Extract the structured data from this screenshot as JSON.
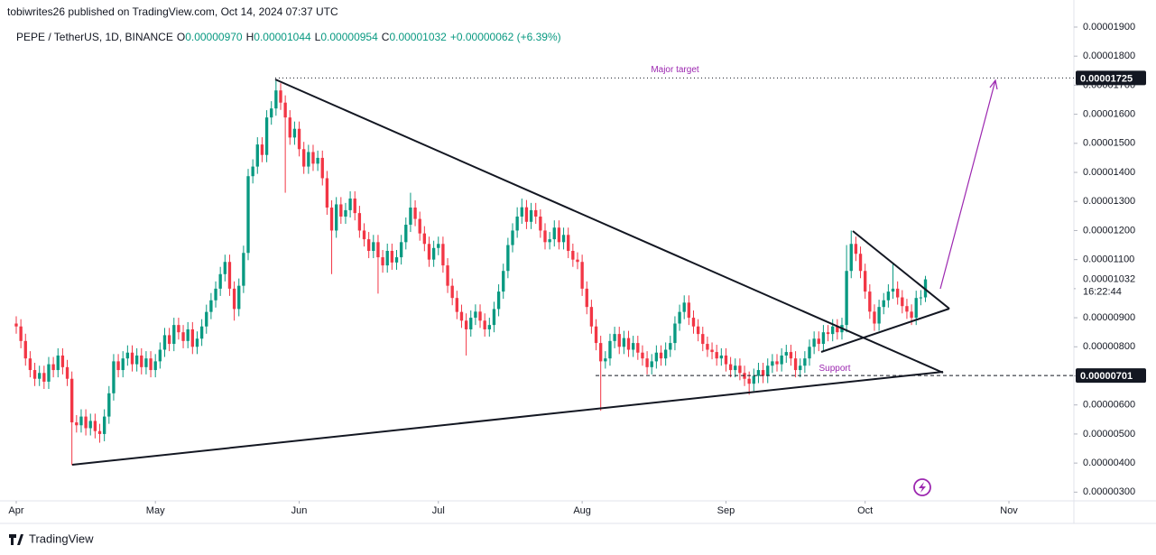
{
  "header": {
    "published": "tobiwrites26 published on TradingView.com, Oct 14, 2024 07:37 UTC",
    "symbol": "PEPE / TetherUS, 1D, BINANCE",
    "ohlc": [
      {
        "key": "O",
        "value": "0.00000970"
      },
      {
        "key": "H",
        "value": "0.00001044"
      },
      {
        "key": "L",
        "value": "0.00000954"
      },
      {
        "key": "C",
        "value": "0.00001032"
      }
    ],
    "change": "+0.00000062 (+6.39%)"
  },
  "footer": {
    "brand": "TradingView"
  },
  "chart_data": {
    "type": "candlestick",
    "up_color": "#089981",
    "down_color": "#f23645",
    "xlim": [
      -3.5,
      228
    ],
    "xticks": [
      {
        "value": 0,
        "label": "Apr"
      },
      {
        "value": 30,
        "label": "May"
      },
      {
        "value": 61,
        "label": "Jun"
      },
      {
        "value": 91,
        "label": "Jul"
      },
      {
        "value": 122,
        "label": "Aug"
      },
      {
        "value": 153,
        "label": "Sep"
      },
      {
        "value": 183,
        "label": "Oct"
      },
      {
        "value": 214,
        "label": "Nov"
      }
    ],
    "ylim": [
      2.7e-06,
      1.931e-05
    ],
    "yticks": [
      {
        "value": 3e-06,
        "label": "0.00000300"
      },
      {
        "value": 4e-06,
        "label": "0.00000400"
      },
      {
        "value": 5e-06,
        "label": "0.00000500"
      },
      {
        "value": 6e-06,
        "label": "0.00000600"
      },
      {
        "value": 7e-06,
        "label": "0.00000700"
      },
      {
        "value": 8e-06,
        "label": "0.00000800"
      },
      {
        "value": 9e-06,
        "label": "0.00000900"
      },
      {
        "value": 1e-05,
        "label": "0.00001000"
      },
      {
        "value": 1.1e-05,
        "label": "0.00001100"
      },
      {
        "value": 1.2e-05,
        "label": "0.00001200"
      },
      {
        "value": 1.3e-05,
        "label": "0.00001300"
      },
      {
        "value": 1.4e-05,
        "label": "0.00001400"
      },
      {
        "value": 1.5e-05,
        "label": "0.00001500"
      },
      {
        "value": 1.6e-05,
        "label": "0.00001600"
      },
      {
        "value": 1.7e-05,
        "label": "0.00001700"
      },
      {
        "value": 1.8e-05,
        "label": "0.00001800"
      },
      {
        "value": 1.9e-05,
        "label": "0.00001900"
      }
    ],
    "levels": [
      {
        "value": 1.725e-05,
        "label": "0.00001725",
        "text": "Major target"
      },
      {
        "value": 7.01e-06,
        "label": "0.00000701",
        "text": "Support"
      }
    ],
    "last_price": {
      "value": 1.032e-05,
      "label": "0.00001032",
      "countdown": "16:22:44"
    },
    "open": [
      8.8e-06,
      8.7e-06,
      8.2e-06,
      7.6e-06,
      7.2e-06,
      6.9e-06,
      7.1e-06,
      6.8e-06,
      7.4e-06,
      7.2e-06,
      7.7e-06,
      7.3e-06,
      6.9e-06,
      5.4e-06,
      5.3e-06,
      5.6e-06,
      5.2e-06,
      5.45e-06,
      5.1e-06,
      5e-06,
      5.6e-06,
      6.4e-06,
      7.5e-06,
      7.2e-06,
      7.6e-06,
      7.8e-06,
      7.4e-06,
      7.7e-06,
      7.3e-06,
      7.6e-06,
      7.2e-06,
      7.5e-06,
      7.9e-06,
      8.4e-06,
      8.1e-06,
      8.75e-06,
      8.5e-06,
      8.2e-06,
      8.6e-06,
      8e-06,
      8.28e-06,
      8.7e-06,
      9.2e-06,
      9.6e-06,
      1e-05,
      1.05e-05,
      1.092e-05,
      1e-05,
      9.3e-06,
      1.01e-05,
      1.123e-05,
      1.387e-05,
      1.42e-05,
      1.496e-05,
      1.46e-05,
      1.589e-05,
      1.62e-05,
      1.682e-05,
      1.64e-05,
      1.589e-05,
      1.52e-05,
      1.55e-05,
      1.48e-05,
      1.42e-05,
      1.47e-05,
      1.43e-05,
      1.45e-05,
      1.38e-05,
      1.279e-05,
      1.2e-05,
      1.29e-05,
      1.248e-05,
      1.27e-05,
      1.31e-05,
      1.26e-05,
      1.2e-05,
      1.17e-05,
      1.13e-05,
      1.16e-05,
      1.108e-05,
      1.08e-05,
      1.13e-05,
      1.09e-05,
      1.108e-05,
      1.16e-05,
      1.22e-05,
      1.279e-05,
      1.24e-05,
      1.19e-05,
      1.154e-05,
      1.1e-05,
      1.14e-05,
      1.154e-05,
      1.08e-05,
      1.01e-05,
      9.68e-06,
      9.2e-06,
      8.9e-06,
      8.6e-06,
      9e-06,
      9.21e-06,
      8.9e-06,
      8.6e-06,
      8.75e-06,
      9.3e-06,
      9.9e-06,
      1.061e-05,
      1.15e-05,
      1.2e-05,
      1.248e-05,
      1.28e-05,
      1.23e-05,
      1.27e-05,
      1.248e-05,
      1.2e-05,
      1.16e-05,
      1.17e-05,
      1.21e-05,
      1.16e-05,
      1.185e-05,
      1.13e-05,
      1.1e-05,
      1.092e-05,
      1e-05,
      9.37e-06,
      8.7e-06,
      8.13e-06,
      7.5e-06,
      7.6e-06,
      8.2e-06,
      8.44e-06,
      8e-06,
      8.3e-06,
      7.9e-06,
      8.13e-06,
      7.8e-06,
      7.6e-06,
      7.3e-06,
      7.5e-06,
      7.8e-06,
      7.6e-06,
      7.9e-06,
      8.13e-06,
      8.8e-06,
      9.2e-06,
      9.52e-06,
      9e-06,
      8.7e-06,
      8.44e-06,
      8.1e-06,
      7.9e-06,
      7.82e-06,
      7.6e-06,
      7.7e-06,
      7.4e-06,
      7.2e-06,
      7.35e-06,
      7.1e-06,
      6.9e-06,
      6.73e-06,
      7e-06,
      7.2e-06,
      7e-06,
      7.35e-06,
      7.5e-06,
      7.4e-06,
      7.7e-06,
      7.82e-06,
      7.6e-06,
      7.2e-06,
      7.35e-06,
      7.6e-06,
      8e-06,
      8.28e-06,
      8.1e-06,
      8.5e-06,
      8.44e-06,
      8.7e-06,
      8.5e-06,
      8.75e-06,
      1.061e-05,
      1.154e-05,
      1.12e-05,
      1.061e-05,
      9.9e-06,
      9.21e-06,
      8.8e-06,
      9.37e-06,
      9.6e-06,
      9.9e-06,
      1e-05,
      9.7e-06,
      9.4e-06,
      9.21e-06,
      9e-06,
      9.68e-06,
      9.7e-06
    ],
    "high": [
      9.05e-06,
      8.95e-06,
      8.45e-06,
      7.85e-06,
      7.45e-06,
      7.35e-06,
      7.35e-06,
      7.65e-06,
      7.65e-06,
      7.95e-06,
      7.95e-06,
      7.55e-06,
      7.15e-06,
      5.65e-06,
      5.85e-06,
      5.85e-06,
      5.7e-06,
      5.7e-06,
      5.35e-06,
      5.85e-06,
      6.65e-06,
      7.75e-06,
      7.75e-06,
      7.85e-06,
      8.05e-06,
      8.05e-06,
      7.95e-06,
      7.95e-06,
      7.85e-06,
      7.85e-06,
      7.75e-06,
      8.15e-06,
      8.65e-06,
      8.65e-06,
      9e-06,
      9e-06,
      8.75e-06,
      8.85e-06,
      8.85e-06,
      8.53e-06,
      8.95e-06,
      9.45e-06,
      9.85e-06,
      1.025e-05,
      1.075e-05,
      1.117e-05,
      1.117e-05,
      1.025e-05,
      1.035e-05,
      1.148e-05,
      1.412e-05,
      1.445e-05,
      1.521e-05,
      1.521e-05,
      1.614e-05,
      1.645e-05,
      1.72e-05,
      1.707e-05,
      1.665e-05,
      1.614e-05,
      1.575e-05,
      1.575e-05,
      1.505e-05,
      1.495e-05,
      1.495e-05,
      1.475e-05,
      1.475e-05,
      1.405e-05,
      1.304e-05,
      1.315e-05,
      1.315e-05,
      1.295e-05,
      1.335e-05,
      1.335e-05,
      1.285e-05,
      1.225e-05,
      1.195e-05,
      1.185e-05,
      1.185e-05,
      1.133e-05,
      1.155e-05,
      1.155e-05,
      1.133e-05,
      1.185e-05,
      1.245e-05,
      1.33e-05,
      1.304e-05,
      1.265e-05,
      1.215e-05,
      1.179e-05,
      1.165e-05,
      1.179e-05,
      1.179e-05,
      1.105e-05,
      1.035e-05,
      9.93e-06,
      9.45e-06,
      9.15e-06,
      9.25e-06,
      9.46e-06,
      9.46e-06,
      9.15e-06,
      9e-06,
      9.55e-06,
      1.015e-05,
      1.086e-05,
      1.175e-05,
      1.225e-05,
      1.28e-05,
      1.31e-05,
      1.305e-05,
      1.295e-05,
      1.295e-05,
      1.273e-05,
      1.225e-05,
      1.195e-05,
      1.235e-05,
      1.235e-05,
      1.21e-05,
      1.21e-05,
      1.155e-05,
      1.125e-05,
      1.117e-05,
      1.025e-05,
      9.62e-06,
      8.95e-06,
      8.38e-06,
      7.85e-06,
      8.45e-06,
      8.69e-06,
      8.69e-06,
      8.55e-06,
      8.55e-06,
      8.38e-06,
      8.38e-06,
      8.05e-06,
      7.85e-06,
      7.75e-06,
      8.05e-06,
      8.05e-06,
      8.15e-06,
      8.38e-06,
      9.05e-06,
      9.45e-06,
      9.77e-06,
      9.77e-06,
      9.25e-06,
      8.95e-06,
      8.69e-06,
      8.35e-06,
      8.15e-06,
      8.07e-06,
      7.95e-06,
      7.95e-06,
      7.65e-06,
      7.6e-06,
      7.6e-06,
      7.35e-06,
      7.15e-06,
      7.25e-06,
      7.45e-06,
      7.45e-06,
      7.6e-06,
      7.75e-06,
      7.75e-06,
      7.95e-06,
      8.07e-06,
      8.07e-06,
      7.85e-06,
      7.6e-06,
      7.85e-06,
      8.25e-06,
      8.53e-06,
      8.53e-06,
      8.75e-06,
      8.75e-06,
      8.95e-06,
      8.95e-06,
      9e-06,
      1.15e-05,
      1.2e-05,
      1.179e-05,
      1.145e-05,
      1.086e-05,
      1.015e-05,
      9.46e-06,
      9.62e-06,
      9.85e-06,
      1.015e-05,
      1.086e-05,
      1.025e-05,
      9.95e-06,
      9.65e-06,
      9.46e-06,
      9.93e-06,
      9.95e-06,
      1.044e-05
    ],
    "low": [
      8.45e-06,
      7.95e-06,
      7.35e-06,
      6.95e-06,
      6.65e-06,
      6.65e-06,
      6.55e-06,
      6.55e-06,
      6.95e-06,
      6.95e-06,
      7.05e-06,
      6.65e-06,
      3.93e-06,
      5.05e-06,
      5.05e-06,
      4.95e-06,
      4.95e-06,
      4.85e-06,
      4.7e-06,
      4.75e-06,
      5.35e-06,
      6.15e-06,
      6.95e-06,
      6.95e-06,
      7.35e-06,
      7.15e-06,
      7.15e-06,
      7.05e-06,
      7.05e-06,
      6.95e-06,
      6.95e-06,
      7.25e-06,
      7.65e-06,
      7.85e-06,
      7.85e-06,
      8.25e-06,
      7.95e-06,
      7.95e-06,
      7.75e-06,
      7.75e-06,
      8.03e-06,
      8.45e-06,
      8.95e-06,
      9.35e-06,
      9.75e-06,
      1.025e-05,
      9.75e-06,
      8.9e-06,
      9.05e-06,
      9.85e-06,
      1.098e-05,
      1.362e-05,
      1.395e-05,
      1.435e-05,
      1.435e-05,
      1.564e-05,
      1.595e-05,
      1.615e-05,
      1.33e-05,
      1.495e-05,
      1.495e-05,
      1.455e-05,
      1.395e-05,
      1.395e-05,
      1.405e-05,
      1.405e-05,
      1.355e-05,
      1.254e-05,
      1.05e-05,
      1.175e-05,
      1.223e-05,
      1.223e-05,
      1.245e-05,
      1.235e-05,
      1.175e-05,
      1.145e-05,
      1.105e-05,
      1.105e-05,
      9.83e-06,
      1.055e-05,
      1.055e-05,
      1.065e-05,
      1.065e-05,
      1.083e-05,
      1.135e-05,
      1.195e-05,
      1.215e-05,
      1.165e-05,
      1.129e-05,
      1.075e-05,
      1.075e-05,
      1.115e-05,
      1.055e-05,
      9.85e-06,
      9.43e-06,
      8.95e-06,
      8.65e-06,
      7.7e-06,
      8.35e-06,
      8.75e-06,
      8.65e-06,
      8.35e-06,
      8.35e-06,
      8.5e-06,
      9.05e-06,
      9.65e-06,
      1.036e-05,
      1.125e-05,
      1.175e-05,
      1.223e-05,
      1.205e-05,
      1.205e-05,
      1.223e-05,
      1.175e-05,
      1.135e-05,
      1.135e-05,
      1.145e-05,
      1.135e-05,
      1.135e-05,
      1.105e-05,
      1.075e-05,
      1.067e-05,
      9.75e-06,
      9.12e-06,
      8.45e-06,
      7.88e-06,
      5.8e-06,
      7.25e-06,
      7.35e-06,
      7.95e-06,
      7.75e-06,
      7.75e-06,
      7.65e-06,
      7.65e-06,
      7.55e-06,
      7.35e-06,
      7.05e-06,
      7.05e-06,
      7.25e-06,
      7.35e-06,
      7.35e-06,
      7.65e-06,
      7.88e-06,
      8.55e-06,
      8.95e-06,
      8.75e-06,
      8.45e-06,
      8.19e-06,
      7.85e-06,
      7.65e-06,
      7.57e-06,
      7.35e-06,
      7.35e-06,
      7.15e-06,
      6.95e-06,
      6.95e-06,
      6.85e-06,
      6.65e-06,
      6.35e-06,
      6.48e-06,
      6.75e-06,
      6.75e-06,
      6.75e-06,
      7.1e-06,
      7.15e-06,
      7.15e-06,
      7.45e-06,
      7.35e-06,
      6.95e-06,
      6.95e-06,
      7.1e-06,
      7.35e-06,
      7.75e-06,
      7.85e-06,
      7.85e-06,
      8.19e-06,
      8.19e-06,
      8.25e-06,
      8.25e-06,
      8.5e-06,
      1.036e-05,
      1.095e-05,
      1.036e-05,
      9.65e-06,
      8.96e-06,
      8.55e-06,
      8.55e-06,
      9.12e-06,
      9.35e-06,
      9.65e-06,
      9.45e-06,
      9.15e-06,
      8.96e-06,
      8.75e-06,
      8.75e-06,
      9.43e-06,
      9.54e-06
    ],
    "close": [
      8.7e-06,
      8.2e-06,
      7.6e-06,
      7.2e-06,
      6.9e-06,
      7.1e-06,
      6.8e-06,
      7.4e-06,
      7.2e-06,
      7.7e-06,
      7.3e-06,
      6.9e-06,
      5.4e-06,
      5.3e-06,
      5.6e-06,
      5.2e-06,
      5.45e-06,
      5.1e-06,
      5e-06,
      5.6e-06,
      6.4e-06,
      7.5e-06,
      7.2e-06,
      7.6e-06,
      7.8e-06,
      7.4e-06,
      7.7e-06,
      7.3e-06,
      7.6e-06,
      7.2e-06,
      7.5e-06,
      7.9e-06,
      8.4e-06,
      8.1e-06,
      8.75e-06,
      8.5e-06,
      8.2e-06,
      8.6e-06,
      8e-06,
      8.28e-06,
      8.7e-06,
      9.2e-06,
      9.6e-06,
      1e-05,
      1.05e-05,
      1.092e-05,
      1e-05,
      9.3e-06,
      1.01e-05,
      1.123e-05,
      1.387e-05,
      1.42e-05,
      1.496e-05,
      1.46e-05,
      1.589e-05,
      1.62e-05,
      1.682e-05,
      1.64e-05,
      1.589e-05,
      1.52e-05,
      1.55e-05,
      1.48e-05,
      1.42e-05,
      1.47e-05,
      1.43e-05,
      1.45e-05,
      1.38e-05,
      1.279e-05,
      1.2e-05,
      1.29e-05,
      1.248e-05,
      1.27e-05,
      1.31e-05,
      1.26e-05,
      1.2e-05,
      1.17e-05,
      1.13e-05,
      1.16e-05,
      1.108e-05,
      1.08e-05,
      1.13e-05,
      1.09e-05,
      1.108e-05,
      1.16e-05,
      1.22e-05,
      1.279e-05,
      1.24e-05,
      1.19e-05,
      1.154e-05,
      1.1e-05,
      1.14e-05,
      1.154e-05,
      1.08e-05,
      1.01e-05,
      9.68e-06,
      9.2e-06,
      8.9e-06,
      8.6e-06,
      9e-06,
      9.21e-06,
      8.9e-06,
      8.6e-06,
      8.75e-06,
      9.3e-06,
      9.9e-06,
      1.061e-05,
      1.15e-05,
      1.2e-05,
      1.248e-05,
      1.28e-05,
      1.23e-05,
      1.27e-05,
      1.248e-05,
      1.2e-05,
      1.16e-05,
      1.17e-05,
      1.21e-05,
      1.16e-05,
      1.185e-05,
      1.13e-05,
      1.1e-05,
      1.092e-05,
      1e-05,
      9.37e-06,
      8.7e-06,
      8.13e-06,
      7.5e-06,
      7.6e-06,
      8.2e-06,
      8.44e-06,
      8e-06,
      8.3e-06,
      7.9e-06,
      8.13e-06,
      7.8e-06,
      7.6e-06,
      7.3e-06,
      7.5e-06,
      7.8e-06,
      7.6e-06,
      7.9e-06,
      8.13e-06,
      8.8e-06,
      9.2e-06,
      9.52e-06,
      9e-06,
      8.7e-06,
      8.44e-06,
      8.1e-06,
      7.9e-06,
      7.82e-06,
      7.6e-06,
      7.7e-06,
      7.4e-06,
      7.2e-06,
      7.35e-06,
      7.1e-06,
      6.9e-06,
      6.73e-06,
      7e-06,
      7.2e-06,
      7e-06,
      7.35e-06,
      7.5e-06,
      7.4e-06,
      7.7e-06,
      7.82e-06,
      7.6e-06,
      7.2e-06,
      7.35e-06,
      7.6e-06,
      8e-06,
      8.28e-06,
      8.1e-06,
      8.5e-06,
      8.44e-06,
      8.7e-06,
      8.5e-06,
      8.75e-06,
      1.061e-05,
      1.154e-05,
      1.12e-05,
      1.061e-05,
      9.9e-06,
      9.21e-06,
      8.8e-06,
      9.37e-06,
      9.6e-06,
      9.9e-06,
      1e-05,
      9.7e-06,
      9.4e-06,
      9.21e-06,
      9e-06,
      9.68e-06,
      9.7e-06,
      1.032e-05
    ]
  }
}
